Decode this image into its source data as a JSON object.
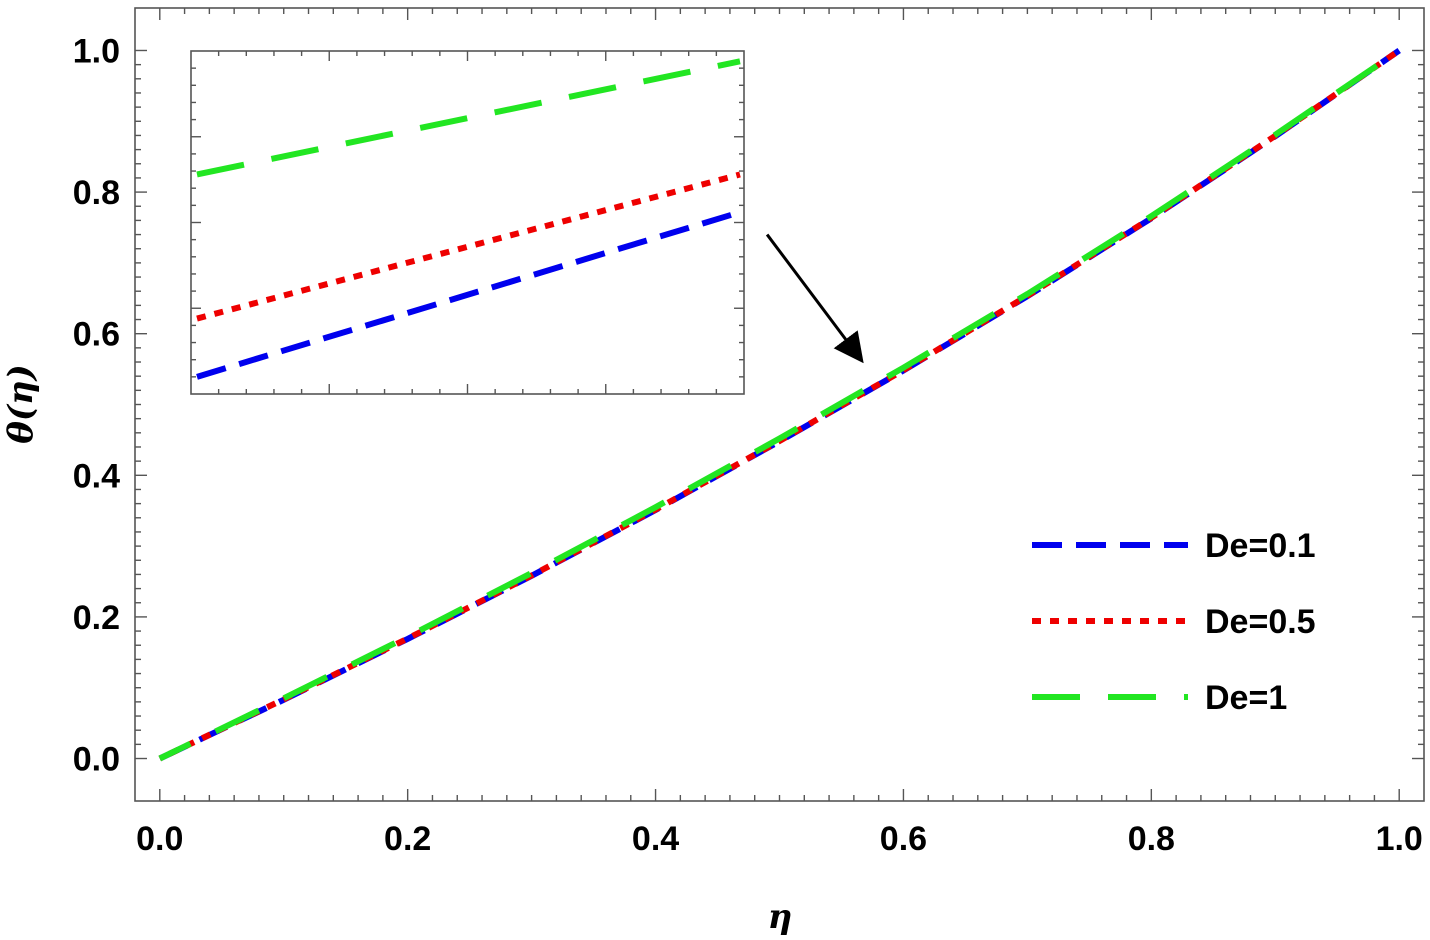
{
  "chart_data": {
    "type": "line",
    "xlabel": "η",
    "ylabel": "θ(η)",
    "xlim": [
      -0.02,
      1.02
    ],
    "ylim": [
      -0.06,
      1.06
    ],
    "x_ticks": [
      "0.0",
      "0.2",
      "0.4",
      "0.6",
      "0.8",
      "1.0"
    ],
    "y_ticks": [
      "0.0",
      "0.2",
      "0.4",
      "0.6",
      "0.8",
      "1.0"
    ],
    "x_tick_values": [
      0,
      0.2,
      0.4,
      0.6,
      0.8,
      1.0
    ],
    "y_tick_values": [
      0,
      0.2,
      0.4,
      0.6,
      0.8,
      1.0
    ],
    "grid": false,
    "legend_position": "bottom-right",
    "series": [
      {
        "name": "De=0.1",
        "color": "#0000ee",
        "dash": "long-dash",
        "x": [
          0,
          0.1,
          0.2,
          0.3,
          0.4,
          0.5,
          0.6,
          0.7,
          0.8,
          0.9,
          1.0
        ],
        "y": [
          0,
          0.083,
          0.169,
          0.258,
          0.351,
          0.448,
          0.548,
          0.653,
          0.763,
          0.879,
          1.0
        ]
      },
      {
        "name": "De=0.5",
        "color": "#ee0000",
        "dash": "dotted",
        "x": [
          0,
          0.1,
          0.2,
          0.3,
          0.4,
          0.5,
          0.6,
          0.7,
          0.8,
          0.9,
          1.0
        ],
        "y": [
          0,
          0.0835,
          0.1695,
          0.2585,
          0.3515,
          0.4485,
          0.5485,
          0.6535,
          0.7635,
          0.8795,
          1.0
        ]
      },
      {
        "name": "De=1",
        "color": "#22e622",
        "dash": "very-long-dash",
        "x": [
          0,
          0.1,
          0.2,
          0.3,
          0.4,
          0.5,
          0.6,
          0.7,
          0.8,
          0.9,
          1.0
        ],
        "y": [
          0,
          0.085,
          0.172,
          0.262,
          0.355,
          0.452,
          0.552,
          0.656,
          0.766,
          0.881,
          1.0
        ]
      }
    ],
    "annotation": {
      "type": "arrow",
      "from": [
        0.49,
        0.74
      ],
      "to": [
        0.565,
        0.565
      ]
    },
    "inset": {
      "position": "top-left",
      "xlim": [
        0,
        1
      ],
      "ylim": [
        0,
        1
      ],
      "series": [
        {
          "name": "De=0.1",
          "y_start": 0.05,
          "y_end": 0.53
        },
        {
          "name": "De=0.5",
          "y_start": 0.22,
          "y_end": 0.64
        },
        {
          "name": "De=1",
          "y_start": 0.64,
          "y_end": 0.97
        }
      ]
    }
  }
}
